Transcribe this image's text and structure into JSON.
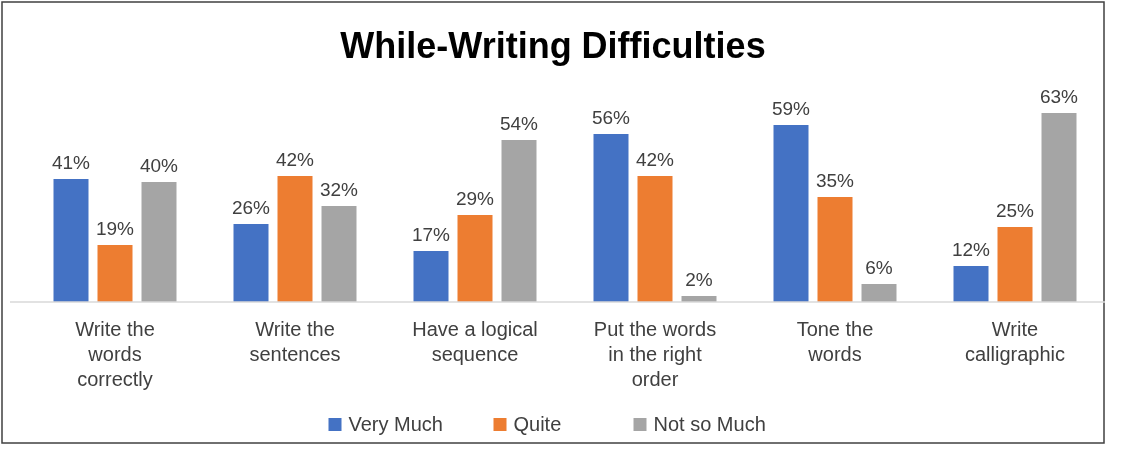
{
  "chart_data": {
    "type": "bar",
    "title": "While-Writing Difficulties",
    "categories": [
      "Write the words correctly",
      "Write the sentences",
      "Have a logical sequence",
      "Put the words in the right order",
      "Tone the words",
      "Write calligraphic"
    ],
    "series": [
      {
        "name": "Very Much",
        "color": "#4472c4",
        "values": [
          41,
          26,
          17,
          56,
          59,
          12
        ],
        "value_labels": [
          "41%",
          "26%",
          "17%",
          "56%",
          "59%",
          "12%"
        ]
      },
      {
        "name": "Quite",
        "color": "#ed7d31",
        "values": [
          19,
          42,
          29,
          42,
          35,
          25
        ],
        "value_labels": [
          "19%",
          "42%",
          "29%",
          "42%",
          "35%",
          "25%"
        ]
      },
      {
        "name": "Not so Much",
        "color": "#a5a5a5",
        "values": [
          40,
          32,
          54,
          2,
          6,
          63
        ],
        "value_labels": [
          "40%",
          "32%",
          "54%",
          "2%",
          "6%",
          "63%"
        ]
      }
    ],
    "legend": "bottom"
  }
}
